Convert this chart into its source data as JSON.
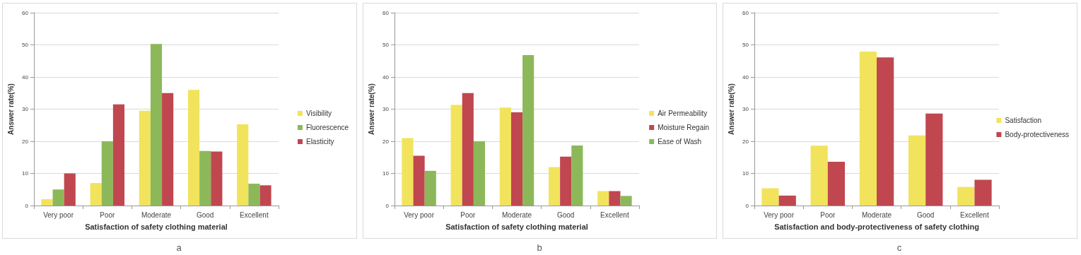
{
  "chart_data": [
    {
      "type": "bar",
      "xlabel": "Satisfaction of safety clothing material",
      "ylabel": "Answer rate(%)",
      "annotations": [
        "a"
      ],
      "categories": [
        "Very poor",
        "Poor",
        "Moderate",
        "Good",
        "Excellent"
      ],
      "series": [
        {
          "name": "Visibility",
          "color": "#f2e35c",
          "values": [
            2,
            7,
            29.5,
            36,
            25.3
          ]
        },
        {
          "name": "Fluorescence",
          "color": "#8cb85a",
          "values": [
            5,
            20,
            50.3,
            17,
            6.8
          ]
        },
        {
          "name": "Elasticity",
          "color": "#c0474f",
          "values": [
            10,
            31.5,
            35,
            16.8,
            6.3
          ]
        }
      ],
      "ylim": [
        0,
        60
      ],
      "yticks": [
        0,
        10,
        20,
        30,
        40,
        50,
        60
      ],
      "grid": "y",
      "legend": "right"
    },
    {
      "type": "bar",
      "xlabel": "Satisfaction of safety clothing material",
      "ylabel": "Answer rate(%)",
      "annotations": [
        "b"
      ],
      "categories": [
        "Very poor",
        "Poor",
        "Moderate",
        "Good",
        "Excellent"
      ],
      "series": [
        {
          "name": "Air Permeability",
          "color": "#f2e35c",
          "values": [
            21,
            31.3,
            30.5,
            12,
            4.5
          ]
        },
        {
          "name": "Moisture Regain",
          "color": "#c0474f",
          "values": [
            15.5,
            35,
            29,
            15.2,
            4.5
          ]
        },
        {
          "name": "Ease of Wash",
          "color": "#8cb85a",
          "values": [
            10.8,
            20,
            46.8,
            18.7,
            3
          ]
        }
      ],
      "ylim": [
        0,
        60
      ],
      "yticks": [
        0,
        10,
        20,
        30,
        40,
        50,
        60
      ],
      "grid": "y",
      "legend": "right"
    },
    {
      "type": "bar",
      "xlabel": "Satisfaction and body-protectiveness of safety clothing",
      "ylabel": "Answer rate(%)",
      "annotations": [
        "c"
      ],
      "categories": [
        "Very poor",
        "Poor",
        "Moderate",
        "Good",
        "Excellent"
      ],
      "series": [
        {
          "name": "Satisfaction",
          "color": "#f2e35c",
          "values": [
            5.4,
            18.6,
            47.9,
            21.8,
            5.8
          ]
        },
        {
          "name": "Body-protectiveness",
          "color": "#c0474f",
          "values": [
            3.1,
            13.6,
            46.1,
            28.6,
            8
          ]
        }
      ],
      "ylim": [
        0,
        60
      ],
      "yticks": [
        0,
        10,
        20,
        30,
        40,
        50,
        60
      ],
      "grid": "y",
      "legend": "right"
    }
  ]
}
